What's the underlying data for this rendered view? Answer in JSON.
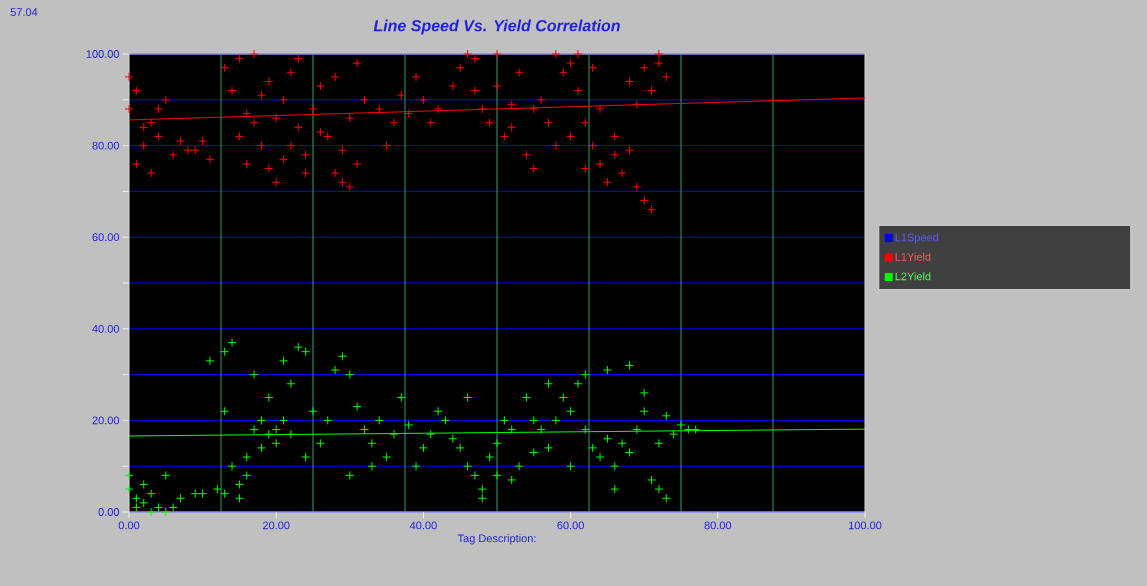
{
  "chart_data": {
    "type": "scatter",
    "title": "Line Speed Vs. Yield Correlation",
    "xlabel": "Tag Description:",
    "annotations": [
      "57.04"
    ],
    "xlim": [
      0,
      100
    ],
    "ylim": [
      0,
      100
    ],
    "xticks": [
      {
        "value": 0,
        "label": "0.00"
      },
      {
        "value": 20,
        "label": "20.00"
      },
      {
        "value": 40,
        "label": "40.00"
      },
      {
        "value": 60,
        "label": "60.00"
      },
      {
        "value": 80,
        "label": "80.00"
      },
      {
        "value": 100,
        "label": "100.00"
      }
    ],
    "yticks": [
      {
        "value": 0,
        "label": "0.00"
      },
      {
        "value": 10,
        "label": null
      },
      {
        "value": 20,
        "label": "20.00"
      },
      {
        "value": 30,
        "label": null
      },
      {
        "value": 40,
        "label": "40.00"
      },
      {
        "value": 50,
        "label": null
      },
      {
        "value": 60,
        "label": "60.00"
      },
      {
        "value": 70,
        "label": null
      },
      {
        "value": 80,
        "label": "80.00"
      },
      {
        "value": 90,
        "label": null
      },
      {
        "value": 100,
        "label": "100.00"
      }
    ],
    "grid": "y",
    "legend": "right",
    "marker": "cross",
    "ref_lines": [
      {
        "axis": "x",
        "value": 12.5,
        "color": "#2e9e7a"
      },
      {
        "axis": "x",
        "value": 25,
        "color": "#2e9e7a"
      },
      {
        "axis": "x",
        "value": 37.5,
        "color": "#2e9e7a"
      },
      {
        "axis": "x",
        "value": 50,
        "color": "#2e9e7a"
      },
      {
        "axis": "x",
        "value": 62.5,
        "color": "#2e9e7a"
      },
      {
        "axis": "x",
        "value": 75,
        "color": "#2e9e7a"
      },
      {
        "axis": "x",
        "value": 87.5,
        "color": "#2e9e7a"
      }
    ],
    "series": [
      {
        "name": "L1Speed",
        "color": "#0000ff"
      },
      {
        "name": "L1Yield",
        "color": "#ff0000",
        "x": [
          0,
          1,
          2,
          3,
          1,
          4,
          5,
          2,
          6,
          7,
          3,
          8,
          9,
          10,
          11,
          4,
          0,
          13,
          14,
          15,
          16,
          17,
          18,
          19,
          20,
          21,
          22,
          23,
          24,
          25,
          26,
          15,
          17,
          19,
          20,
          22,
          24,
          26,
          18,
          21,
          23,
          16,
          27,
          28,
          29,
          30,
          31,
          29,
          30,
          32,
          28,
          31,
          34,
          36,
          37,
          38,
          40,
          42,
          44,
          35,
          39,
          41,
          45,
          46,
          47,
          48,
          49,
          50,
          51,
          52,
          53,
          54,
          55,
          56,
          57,
          58,
          47,
          50,
          52,
          55,
          58,
          59,
          60,
          61,
          62,
          63,
          64,
          65,
          66,
          67,
          68,
          69,
          70,
          71,
          60,
          62,
          64,
          66,
          68,
          70,
          72,
          71,
          73,
          72,
          69,
          61,
          63
        ],
        "values": [
          88,
          92,
          80,
          85,
          76,
          82,
          90,
          84,
          78,
          81,
          74,
          79,
          79,
          81,
          77,
          88,
          95,
          97,
          92,
          99,
          87,
          85,
          80,
          75,
          72,
          90,
          96,
          84,
          78,
          88,
          93,
          82,
          100,
          94,
          86,
          80,
          74,
          83,
          91,
          77,
          99,
          76,
          82,
          74,
          72,
          71,
          76,
          79,
          86,
          90,
          95,
          98,
          88,
          85,
          91,
          87,
          90,
          88,
          93,
          80,
          95,
          85,
          97,
          100,
          92,
          88,
          85,
          93,
          82,
          89,
          96,
          78,
          75,
          90,
          85,
          80,
          99,
          100,
          84,
          88,
          100,
          96,
          98,
          92,
          85,
          80,
          76,
          72,
          78,
          74,
          79,
          71,
          68,
          66,
          82,
          75,
          88,
          82,
          94,
          97,
          100,
          92,
          95,
          98,
          89,
          100,
          97
        ]
      },
      {
        "name": "L2Yield",
        "color": "#00ff00",
        "x": [
          0,
          1,
          2,
          3,
          4,
          5,
          6,
          0,
          2,
          5,
          7,
          9,
          10,
          12,
          3,
          1,
          11,
          13,
          14,
          13,
          14,
          15,
          16,
          17,
          18,
          19,
          20,
          21,
          22,
          23,
          24,
          25,
          15,
          16,
          18,
          20,
          22,
          24,
          26,
          17,
          19,
          21,
          13,
          27,
          28,
          29,
          30,
          31,
          32,
          33,
          34,
          35,
          36,
          38,
          40,
          42,
          44,
          30,
          33,
          37,
          39,
          41,
          43,
          45,
          46,
          47,
          48,
          49,
          50,
          51,
          52,
          53,
          54,
          55,
          56,
          57,
          46,
          48,
          50,
          52,
          55,
          57,
          58,
          59,
          60,
          61,
          62,
          63,
          64,
          65,
          66,
          67,
          68,
          69,
          70,
          71,
          72,
          73,
          74,
          75,
          76,
          77,
          62,
          65,
          68,
          70,
          60,
          66,
          72,
          73
        ],
        "values": [
          5,
          3,
          2,
          4,
          1,
          0,
          1,
          8,
          6,
          8,
          3,
          4,
          4,
          5,
          0,
          1,
          33,
          35,
          37,
          22,
          10,
          6,
          12,
          18,
          20,
          25,
          15,
          33,
          28,
          36,
          35,
          22,
          3,
          8,
          14,
          18,
          17,
          12,
          15,
          30,
          17,
          20,
          4,
          20,
          31,
          34,
          30,
          23,
          18,
          15,
          20,
          12,
          17,
          19,
          14,
          22,
          16,
          8,
          10,
          25,
          10,
          17,
          20,
          14,
          10,
          8,
          5,
          12,
          15,
          20,
          18,
          10,
          25,
          20,
          18,
          28,
          25,
          3,
          8,
          7,
          13,
          14,
          20,
          25,
          22,
          28,
          18,
          14,
          12,
          16,
          10,
          15,
          13,
          18,
          22,
          7,
          15,
          21,
          17,
          19,
          18,
          18,
          30,
          31,
          32,
          26,
          10,
          5,
          5,
          3
        ]
      },
      {
        "type": "line",
        "marker": "none",
        "color": "#ff0000",
        "x": [
          0,
          100
        ],
        "values": [
          85.6,
          90.4
        ]
      },
      {
        "type": "line",
        "marker": "none",
        "color": "#00ff00",
        "x": [
          0,
          100
        ],
        "values": [
          16.6,
          18.1
        ]
      }
    ]
  }
}
